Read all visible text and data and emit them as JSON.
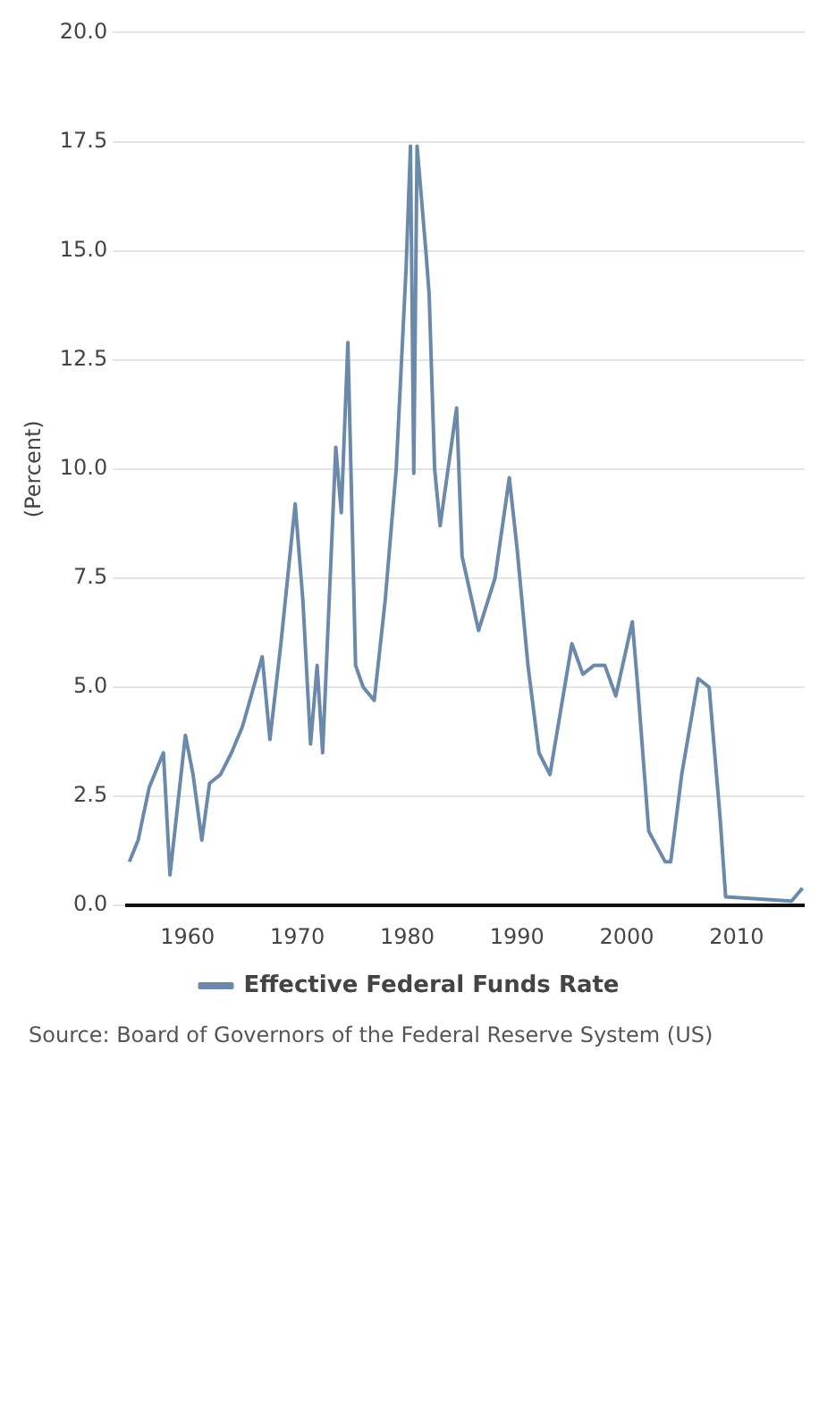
{
  "chart_data": {
    "type": "line",
    "ylabel": "(Percent)",
    "annotations": [
      "Source: Board of Governors of the Federal Reserve System (US)"
    ],
    "xlim": [
      1954.5,
      2016.2
    ],
    "xticks": [
      1960,
      1970,
      1980,
      1990,
      2000,
      2010
    ],
    "ylim": [
      0,
      20
    ],
    "yticks": [
      {
        "value": 0,
        "label": "0.0"
      },
      {
        "value": 2.5,
        "label": "2.5"
      },
      {
        "value": 5,
        "label": "5.0"
      },
      {
        "value": 7.5,
        "label": "7.5"
      },
      {
        "value": 10,
        "label": "10.0"
      },
      {
        "value": 12.5,
        "label": "12.5"
      },
      {
        "value": 15,
        "label": "15.0"
      },
      {
        "value": 17.5,
        "label": "17.5"
      },
      {
        "value": 20,
        "label": "20.0"
      }
    ],
    "grid": "y",
    "legend": "bottom",
    "marker": "none",
    "line_style": "solid",
    "series": [
      {
        "name": "Effective Federal Funds Rate",
        "color": "#6b8aab",
        "x": [
          1954.7,
          1955.5,
          1956.5,
          1957.8,
          1958.4,
          1959.8,
          1960.5,
          1961.3,
          1962,
          1963,
          1964,
          1965,
          1966.8,
          1967.5,
          1968.5,
          1969.8,
          1970.5,
          1971.2,
          1971.8,
          1972.3,
          1973.5,
          1974,
          1974.6,
          1975.3,
          1976,
          1977,
          1978,
          1979,
          1979.9,
          1980.3,
          1980.6,
          1980.9,
          1981.7,
          1982,
          1982.5,
          1983,
          1984.5,
          1985,
          1986.5,
          1987,
          1988,
          1989.3,
          1990,
          1991,
          1992,
          1993,
          1994,
          1995,
          1996,
          1997,
          1998,
          1999,
          2000.5,
          2001,
          2002,
          2003.5,
          2004,
          2005,
          2006.5,
          2007.5,
          2008.5,
          2009,
          2015,
          2016
        ],
        "values": [
          1.0,
          1.5,
          2.7,
          3.5,
          0.7,
          3.9,
          3.0,
          1.5,
          2.8,
          3.0,
          3.5,
          4.1,
          5.7,
          3.8,
          6.0,
          9.2,
          7.0,
          3.7,
          5.5,
          3.5,
          10.5,
          9.0,
          12.9,
          5.5,
          5.0,
          4.7,
          7.0,
          10.0,
          14.6,
          17.4,
          9.9,
          17.4,
          15.0,
          14.0,
          10.0,
          8.7,
          11.4,
          8.0,
          6.3,
          6.7,
          7.5,
          9.8,
          8.2,
          5.5,
          3.5,
          3.0,
          4.5,
          6.0,
          5.3,
          5.5,
          5.5,
          4.8,
          6.5,
          5.0,
          1.7,
          1.0,
          1.0,
          3.0,
          5.2,
          5.0,
          2.0,
          0.2,
          0.1,
          0.4
        ]
      }
    ]
  }
}
